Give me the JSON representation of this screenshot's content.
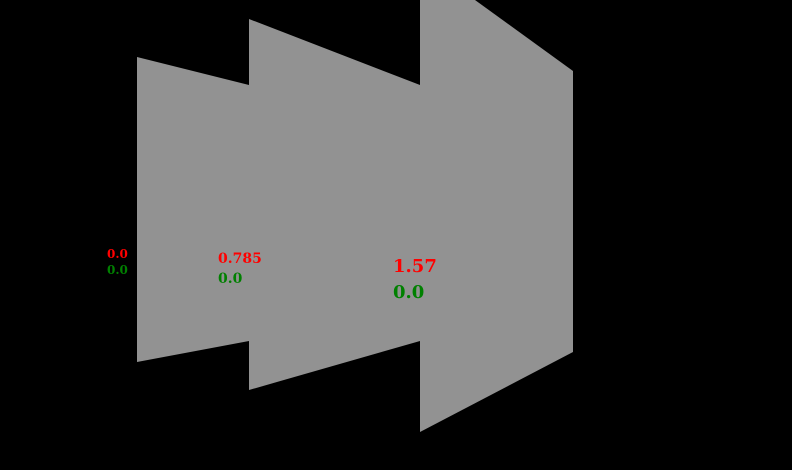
{
  "colors": {
    "background": "#000000",
    "panel": "#929292",
    "label_primary": "#ff0000",
    "label_secondary": "#008000"
  },
  "panels": [
    {
      "id": "panel-1",
      "value_red": "0.0",
      "value_green": "0.0"
    },
    {
      "id": "panel-2",
      "value_red": "0.785",
      "value_green": "0.0"
    },
    {
      "id": "panel-3",
      "value_red": "1.57",
      "value_green": "0.0"
    }
  ]
}
